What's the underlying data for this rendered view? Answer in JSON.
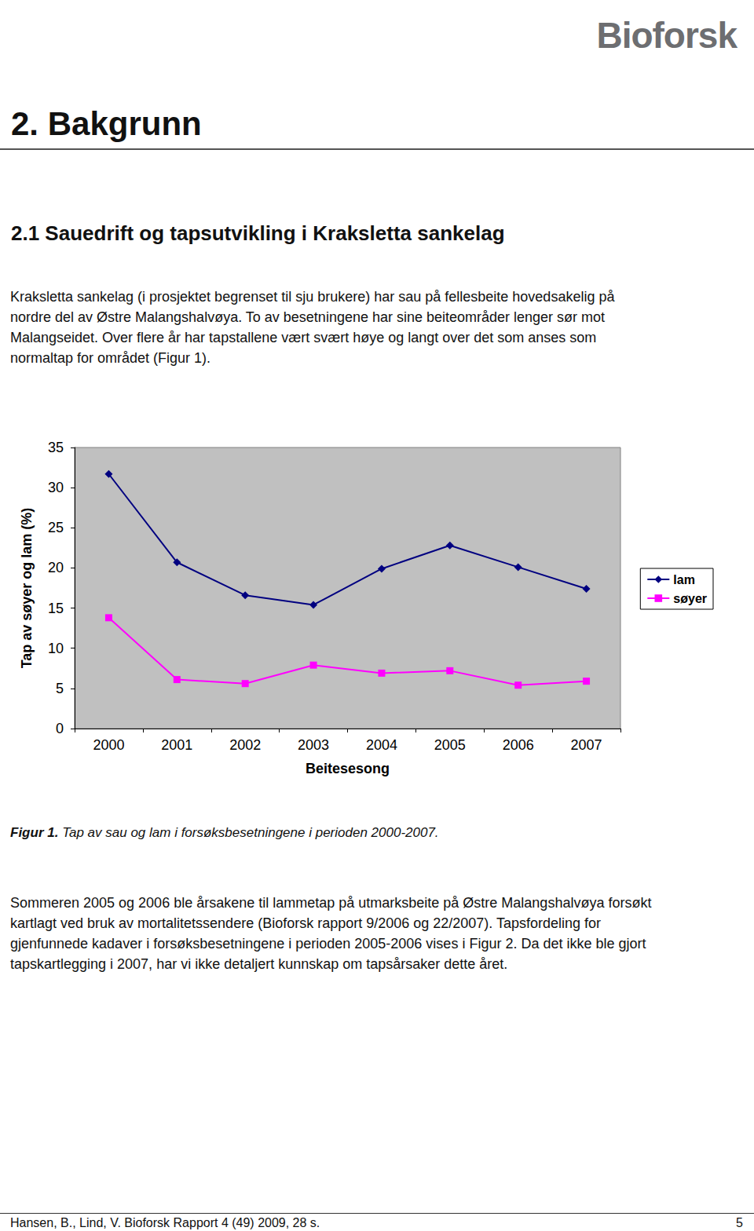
{
  "logo": "Bioforsk",
  "heading": "2. Bakgrunn",
  "section": "2.1 Sauedrift og tapsutvikling i Kraksletta sankelag",
  "paragraphs": [
    [
      "Kraksletta sankelag (i prosjektet begrenset til sju brukere) har sau på fellesbeite hovedsakelig på",
      "nordre del av Østre Malangshalvøya. To av besetningene har sine beiteområder lenger sør mot",
      "Malangseidet. Over flere år har tapstallene vært svært høye og langt over det som anses som",
      "normaltap for området (Figur 1)."
    ],
    [
      "Sommeren 2005 og 2006 ble årsakene til lammetap på utmarksbeite på Østre Malangshalvøya forsøkt",
      "kartlagt ved bruk av mortalitetssendere (Bioforsk rapport 9/2006 og 22/2007). Tapsfordeling for",
      "gjenfunnede kadaver i forsøksbesetningene i perioden 2005-2006 vises i Figur 2. Da det ikke ble gjort",
      "tapskartlegging i 2007, har vi ikke detaljert kunnskap om tapsårsaker dette året."
    ]
  ],
  "chart_data": {
    "type": "line",
    "x_label": "Beitesesong",
    "y_label": "Tap av søyer og lam (%)",
    "categories": [
      "2000",
      "2001",
      "2002",
      "2003",
      "2004",
      "2005",
      "2006",
      "2007"
    ],
    "series": [
      {
        "name": "lam",
        "color": "#000080",
        "marker": "diamond",
        "values": [
          31.7,
          20.7,
          16.6,
          15.4,
          19.9,
          22.8,
          20.1,
          17.4
        ]
      },
      {
        "name": "søyer",
        "color": "#ff00ff",
        "marker": "square",
        "values": [
          13.8,
          6.1,
          5.6,
          7.9,
          6.9,
          7.2,
          5.4,
          5.9
        ]
      }
    ],
    "ylim": [
      0,
      35
    ],
    "yticks": [
      0,
      5,
      10,
      15,
      20,
      25,
      30,
      35
    ],
    "grid": false,
    "legend": "right"
  },
  "caption": {
    "label": "Figur 1.",
    "text": "Tap av sau og lam i forsøksbesetningene i perioden 2000-2007."
  },
  "footer": {
    "citation": "Hansen, B., Lind, V. Bioforsk Rapport 4 (49) 2009, 28 s.",
    "page": "5"
  }
}
